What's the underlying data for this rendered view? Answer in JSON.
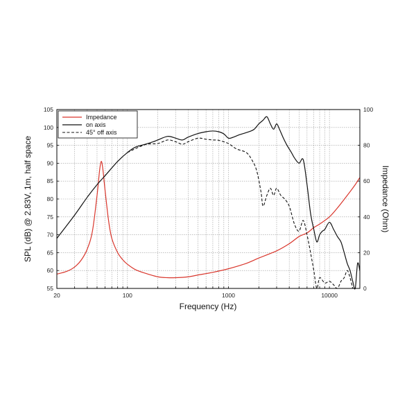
{
  "chart_data": {
    "type": "line",
    "xlabel": "Frequency (Hz)",
    "ylabel": "SPL (dB) @ 2.83V, 1m, half space",
    "y2label": "Impedance (Ohm)",
    "xscale": "log",
    "xlim": [
      20,
      20000
    ],
    "ylim": [
      55,
      105
    ],
    "y2lim": [
      0,
      100
    ],
    "grid": true,
    "legend_position": "top-left",
    "x_tick_labels": [
      "20",
      "100",
      "1000",
      "10000"
    ],
    "x_tick_values": [
      20,
      100,
      1000,
      10000
    ],
    "y_tick_labels": [
      "55",
      "60",
      "65",
      "70",
      "75",
      "80",
      "85",
      "90",
      "95",
      "100",
      "105"
    ],
    "y2_tick_labels": [
      "0",
      "20",
      "40",
      "60",
      "80",
      "100"
    ],
    "series": [
      {
        "name": "Impedance",
        "axis": "right",
        "color": "#d9352b",
        "style": "solid",
        "points": [
          [
            20,
            8
          ],
          [
            25,
            9.5
          ],
          [
            30,
            12
          ],
          [
            35,
            16
          ],
          [
            40,
            22
          ],
          [
            45,
            32
          ],
          [
            50,
            52
          ],
          [
            53,
            66
          ],
          [
            55,
            71
          ],
          [
            57,
            67
          ],
          [
            60,
            55
          ],
          [
            65,
            38
          ],
          [
            70,
            28
          ],
          [
            80,
            20
          ],
          [
            90,
            16
          ],
          [
            100,
            13.5
          ],
          [
            120,
            10.5
          ],
          [
            150,
            8.5
          ],
          [
            200,
            6.5
          ],
          [
            250,
            6
          ],
          [
            300,
            6
          ],
          [
            400,
            6.5
          ],
          [
            500,
            7.5
          ],
          [
            700,
            9
          ],
          [
            1000,
            11
          ],
          [
            1500,
            14
          ],
          [
            2000,
            17
          ],
          [
            3000,
            21
          ],
          [
            4000,
            25
          ],
          [
            5000,
            29
          ],
          [
            6000,
            31
          ],
          [
            7000,
            34
          ],
          [
            8000,
            36
          ],
          [
            10000,
            40
          ],
          [
            12000,
            45
          ],
          [
            15000,
            52
          ],
          [
            18000,
            58
          ],
          [
            20000,
            62
          ]
        ]
      },
      {
        "name": "on axis",
        "axis": "left",
        "color": "#111111",
        "style": "solid",
        "points": [
          [
            20,
            69
          ],
          [
            30,
            75.5
          ],
          [
            40,
            80.5
          ],
          [
            50,
            84
          ],
          [
            60,
            86.5
          ],
          [
            80,
            90.5
          ],
          [
            100,
            93
          ],
          [
            120,
            94.5
          ],
          [
            150,
            95.3
          ],
          [
            180,
            96
          ],
          [
            200,
            96.5
          ],
          [
            250,
            97.5
          ],
          [
            300,
            97
          ],
          [
            350,
            96.5
          ],
          [
            400,
            97.3
          ],
          [
            500,
            98.3
          ],
          [
            600,
            98.8
          ],
          [
            700,
            99
          ],
          [
            800,
            98.8
          ],
          [
            900,
            98.2
          ],
          [
            1000,
            97
          ],
          [
            1100,
            97.2
          ],
          [
            1300,
            98
          ],
          [
            1600,
            98.8
          ],
          [
            1800,
            99.5
          ],
          [
            2000,
            101
          ],
          [
            2200,
            102
          ],
          [
            2400,
            103
          ],
          [
            2600,
            101
          ],
          [
            2800,
            99.5
          ],
          [
            3000,
            101
          ],
          [
            3200,
            99.5
          ],
          [
            3500,
            97
          ],
          [
            3800,
            95
          ],
          [
            4200,
            93
          ],
          [
            4500,
            91.5
          ],
          [
            5000,
            90
          ],
          [
            5500,
            91
          ],
          [
            6000,
            84
          ],
          [
            6500,
            76
          ],
          [
            7000,
            71.5
          ],
          [
            7500,
            68
          ],
          [
            8000,
            70
          ],
          [
            8500,
            71
          ],
          [
            9000,
            71.5
          ],
          [
            10000,
            73.5
          ],
          [
            11000,
            71.5
          ],
          [
            12000,
            69.5
          ],
          [
            13000,
            68
          ],
          [
            14000,
            65
          ],
          [
            15000,
            62
          ],
          [
            16000,
            60
          ],
          [
            17000,
            57
          ],
          [
            18000,
            55
          ],
          [
            19000,
            62
          ],
          [
            20000,
            60
          ]
        ]
      },
      {
        "name": "45° off axis",
        "axis": "left",
        "color": "#111111",
        "style": "dashed",
        "points": [
          [
            100,
            93
          ],
          [
            150,
            95.2
          ],
          [
            200,
            95.5
          ],
          [
            250,
            96.5
          ],
          [
            300,
            96
          ],
          [
            350,
            95.3
          ],
          [
            400,
            96
          ],
          [
            500,
            97
          ],
          [
            600,
            96.7
          ],
          [
            700,
            96.5
          ],
          [
            800,
            96.4
          ],
          [
            1000,
            95.5
          ],
          [
            1200,
            94
          ],
          [
            1500,
            93
          ],
          [
            1700,
            91
          ],
          [
            1900,
            88
          ],
          [
            2100,
            82
          ],
          [
            2200,
            78
          ],
          [
            2400,
            81
          ],
          [
            2600,
            83
          ],
          [
            2800,
            81
          ],
          [
            3000,
            83
          ],
          [
            3300,
            81
          ],
          [
            3600,
            80
          ],
          [
            4000,
            78
          ],
          [
            4500,
            73
          ],
          [
            5000,
            71
          ],
          [
            5500,
            74
          ],
          [
            6000,
            70
          ],
          [
            6500,
            65
          ],
          [
            7000,
            60
          ],
          [
            7500,
            55
          ],
          [
            8000,
            58
          ],
          [
            9000,
            56.5
          ],
          [
            10000,
            57
          ],
          [
            11000,
            56
          ],
          [
            12000,
            55
          ],
          [
            13000,
            57
          ],
          [
            14000,
            58
          ],
          [
            15000,
            60
          ],
          [
            16000,
            58
          ],
          [
            17000,
            55
          ]
        ]
      }
    ]
  }
}
